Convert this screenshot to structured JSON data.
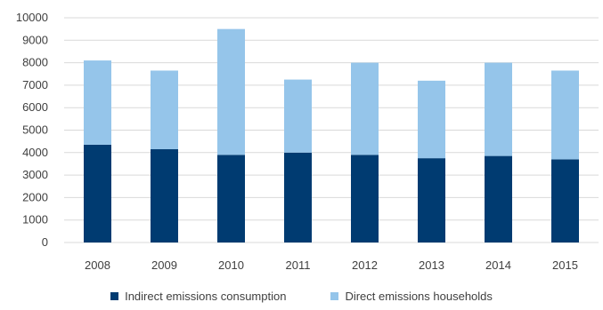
{
  "chart_data": {
    "type": "bar",
    "stacked": true,
    "categories": [
      "2008",
      "2009",
      "2010",
      "2011",
      "2012",
      "2013",
      "2014",
      "2015"
    ],
    "series": [
      {
        "name": "Indirect emissions consumption",
        "color": "#003b71",
        "values": [
          4350,
          4150,
          3900,
          4000,
          3900,
          3750,
          3850,
          3700
        ]
      },
      {
        "name": "Direct emissions households",
        "color": "#95c5ea",
        "values": [
          3750,
          3500,
          5600,
          3250,
          4100,
          3450,
          4150,
          3950
        ]
      }
    ],
    "ylim": [
      0,
      10000
    ],
    "yticks": [
      "0",
      "1000",
      "2000",
      "3000",
      "4000",
      "5000",
      "6000",
      "7000",
      "8000",
      "9000",
      "10000"
    ],
    "grid": true,
    "legend_position": "bottom"
  }
}
